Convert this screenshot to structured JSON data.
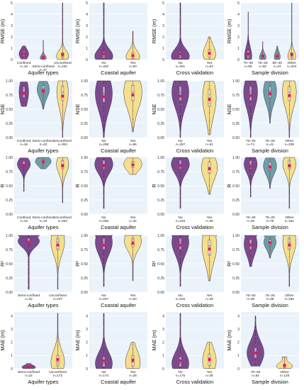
{
  "colors": {
    "panel_bg": "#eaf2fa",
    "grid": "#ffffff",
    "purple": "#7b4a8c",
    "teal": "#6d9ea6",
    "yellow": "#f4e08a",
    "outline": "#3a2a4a",
    "mean": "#e0185a",
    "box": "#ffffff",
    "point": "#e05a8a"
  },
  "chart_data": [
    {
      "type": "violin",
      "ylabel": "RMSE (m)",
      "xlabel": "Aquifer types",
      "ylim": [
        0,
        5
      ],
      "yticks": [
        "0",
        "1",
        "2",
        "3",
        "4",
        "5"
      ],
      "categories": [
        {
          "label": "Confined",
          "n": "n=16",
          "color": "purple",
          "median": 0.5,
          "q1": 0.3,
          "q3": 0.7,
          "min": 0.05,
          "max": 1.2,
          "mean": 0.5,
          "spread": 0.55
        },
        {
          "label": "Semi-confined",
          "n": "n=47",
          "color": "teal",
          "median": 0.15,
          "q1": 0.08,
          "q3": 0.3,
          "min": 0.02,
          "max": 1.7,
          "mean": 0.2,
          "spread": 0.35
        },
        {
          "label": "Unconfined",
          "n": "n=432",
          "color": "yellow",
          "median": 0.3,
          "q1": 0.15,
          "q3": 0.6,
          "min": 0.01,
          "max": 5,
          "mean": 0.45,
          "spread": 0.7
        }
      ]
    },
    {
      "type": "violin",
      "ylabel": "RMSE (m)",
      "xlabel": "Coastal aquifer",
      "ylim": [
        0,
        5
      ],
      "yticks": [
        "0",
        "1",
        "2",
        "3",
        "4",
        "5"
      ],
      "categories": [
        {
          "label": "No",
          "n": "n=402",
          "color": "purple",
          "median": 0.3,
          "q1": 0.12,
          "q3": 0.7,
          "min": 0.01,
          "max": 5,
          "mean": 0.5,
          "spread": 0.8
        },
        {
          "label": "Yes",
          "n": "n=93",
          "color": "yellow",
          "median": 0.25,
          "q1": 0.1,
          "q3": 0.6,
          "min": 0.01,
          "max": 2.5,
          "mean": 0.35,
          "spread": 0.6
        }
      ]
    },
    {
      "type": "violin",
      "ylabel": "RMSE (m)",
      "xlabel": "Cross validation",
      "ylim": [
        0,
        5
      ],
      "yticks": [
        "0",
        "1",
        "2",
        "3",
        "4",
        "5"
      ],
      "categories": [
        {
          "label": "No",
          "n": "n=401",
          "color": "purple",
          "median": 0.3,
          "q1": 0.12,
          "q3": 0.7,
          "min": 0.01,
          "max": 5,
          "mean": 0.5,
          "spread": 0.8
        },
        {
          "label": "Yes",
          "n": "n=63",
          "color": "yellow",
          "median": 0.5,
          "q1": 0.2,
          "q3": 0.9,
          "min": 0.01,
          "max": 2.0,
          "mean": 0.55,
          "spread": 0.55
        }
      ]
    },
    {
      "type": "violin",
      "ylabel": "RMSE (m)",
      "xlabel": "Sample division",
      "ylim": [
        0,
        5
      ],
      "yticks": [
        "0",
        "1",
        "2",
        "3",
        "4",
        "5"
      ],
      "categories": [
        {
          "label": "70–30",
          "n": "n=56",
          "color": "purple",
          "median": 0.3,
          "q1": 0.1,
          "q3": 0.8,
          "min": 0.01,
          "max": 4.2,
          "mean": 0.5,
          "spread": 0.55
        },
        {
          "label": "75–25",
          "n": "n=92",
          "color": "teal",
          "median": 0.2,
          "q1": 0.08,
          "q3": 0.4,
          "min": 0.01,
          "max": 1.6,
          "mean": 0.3,
          "spread": 0.5
        },
        {
          "label": "80–20",
          "n": "n=23",
          "color": "teal",
          "median": 0.25,
          "q1": 0.1,
          "q3": 0.5,
          "min": 0.01,
          "max": 1.2,
          "mean": 0.3,
          "spread": 0.45
        },
        {
          "label": "Other",
          "n": "n=324",
          "color": "yellow",
          "median": 0.3,
          "q1": 0.15,
          "q3": 0.6,
          "min": 0.01,
          "max": 5,
          "mean": 0.45,
          "spread": 0.6
        }
      ]
    },
    {
      "type": "violin",
      "ylabel": "NSE",
      "xlabel": "Aquifer types",
      "ylim": [
        0,
        1
      ],
      "yticks": [
        "0.00",
        "0.25",
        "0.50",
        "0.75",
        "1.00"
      ],
      "categories": [
        {
          "label": "Confined",
          "n": "n=18",
          "color": "purple",
          "median": 0.8,
          "q1": 0.7,
          "q3": 0.9,
          "min": 0.55,
          "max": 0.98,
          "mean": 0.78,
          "spread": 0.55
        },
        {
          "label": "Semi-confined",
          "n": "n=42",
          "color": "teal",
          "median": 0.85,
          "q1": 0.78,
          "q3": 0.92,
          "min": 0.5,
          "max": 0.99,
          "mean": 0.82,
          "spread": 0.7
        },
        {
          "label": "Unconfined",
          "n": "n=304",
          "color": "yellow",
          "median": 0.8,
          "q1": 0.65,
          "q3": 0.9,
          "min": 0.0,
          "max": 1.0,
          "mean": 0.73,
          "spread": 0.65
        }
      ]
    },
    {
      "type": "violin",
      "ylabel": "NSE",
      "xlabel": "Coastal aquifer",
      "ylim": [
        0,
        1
      ],
      "yticks": [
        "0.00",
        "0.25",
        "0.50",
        "0.75",
        "1.00"
      ],
      "categories": [
        {
          "label": "No",
          "n": "n=298",
          "color": "purple",
          "median": 0.78,
          "q1": 0.62,
          "q3": 0.9,
          "min": 0.0,
          "max": 1.0,
          "mean": 0.72,
          "spread": 0.75
        },
        {
          "label": "Yes",
          "n": "n=66",
          "color": "yellow",
          "median": 0.8,
          "q1": 0.65,
          "q3": 0.92,
          "min": 0.1,
          "max": 1.0,
          "mean": 0.75,
          "spread": 0.8
        }
      ]
    },
    {
      "type": "violin",
      "ylabel": "NSE",
      "xlabel": "Cross validation",
      "ylim": [
        0,
        1
      ],
      "yticks": [
        "0.00",
        "0.25",
        "0.50",
        "0.75",
        "1.00"
      ],
      "categories": [
        {
          "label": "No",
          "n": "n=287",
          "color": "purple",
          "median": 0.8,
          "q1": 0.65,
          "q3": 0.9,
          "min": 0.0,
          "max": 1.0,
          "mean": 0.73,
          "spread": 0.75
        },
        {
          "label": "Yes",
          "n": "n=51",
          "color": "yellow",
          "median": 0.7,
          "q1": 0.55,
          "q3": 0.85,
          "min": 0.05,
          "max": 0.99,
          "mean": 0.67,
          "spread": 0.6
        }
      ]
    },
    {
      "type": "violin",
      "ylabel": "NSE",
      "xlabel": "Sample division",
      "ylim": [
        0,
        1
      ],
      "yticks": [
        "0.00",
        "0.25",
        "0.50",
        "0.75",
        "1.00"
      ],
      "categories": [
        {
          "label": "70–30",
          "n": "n=74",
          "color": "purple",
          "median": 0.8,
          "q1": 0.65,
          "q3": 0.9,
          "min": 0.0,
          "max": 1.0,
          "mean": 0.74,
          "spread": 0.8
        },
        {
          "label": "75–25",
          "n": "n=41",
          "color": "teal",
          "median": 0.82,
          "q1": 0.7,
          "q3": 0.9,
          "min": 0.25,
          "max": 0.99,
          "mean": 0.77,
          "spread": 0.75
        },
        {
          "label": "Other",
          "n": "n=238",
          "color": "yellow",
          "median": 0.8,
          "q1": 0.65,
          "q3": 0.9,
          "min": 0.0,
          "max": 1.0,
          "mean": 0.74,
          "spread": 0.8
        }
      ]
    },
    {
      "type": "violin",
      "ylabel": "R",
      "xlabel": "Aquifer types",
      "ylim": [
        0,
        1
      ],
      "yticks": [
        "0.00",
        "0.25",
        "0.50",
        "0.75",
        "1.00"
      ],
      "categories": [
        {
          "label": "Confined",
          "n": "n=16",
          "color": "purple",
          "median": 0.88,
          "q1": 0.83,
          "q3": 0.93,
          "min": 0.4,
          "max": 0.99,
          "mean": 0.86,
          "spread": 0.75
        },
        {
          "label": "Semi-confined",
          "n": "n=19",
          "color": "teal",
          "median": 0.93,
          "q1": 0.88,
          "q3": 0.96,
          "min": 0.8,
          "max": 1.0,
          "mean": 0.92,
          "spread": 0.9
        },
        {
          "label": "Unconfined",
          "n": "n=253",
          "color": "yellow",
          "median": 0.88,
          "q1": 0.8,
          "q3": 0.95,
          "min": 0.2,
          "max": 1.0,
          "mean": 0.85,
          "spread": 0.7
        }
      ]
    },
    {
      "type": "violin",
      "ylabel": "R",
      "xlabel": "Coastal aquifer",
      "ylim": [
        0,
        1
      ],
      "yticks": [
        "0.00",
        "0.25",
        "0.50",
        "0.75",
        "1.00"
      ],
      "categories": [
        {
          "label": "No",
          "n": "n=256",
          "color": "purple",
          "median": 0.88,
          "q1": 0.8,
          "q3": 0.95,
          "min": 0.1,
          "max": 1.0,
          "mean": 0.85,
          "spread": 0.8
        },
        {
          "label": "Yes",
          "n": "n=32",
          "color": "yellow",
          "median": 0.88,
          "q1": 0.82,
          "q3": 0.93,
          "min": 0.7,
          "max": 0.99,
          "mean": 0.87,
          "spread": 0.8
        }
      ]
    },
    {
      "type": "violin",
      "ylabel": "R",
      "xlabel": "Cross validation",
      "ylim": [
        0,
        1
      ],
      "yticks": [
        "0.00",
        "0.25",
        "0.50",
        "0.75",
        "1.00"
      ],
      "categories": [
        {
          "label": "No",
          "n": "n=249",
          "color": "purple",
          "median": 0.88,
          "q1": 0.8,
          "q3": 0.95,
          "min": 0.1,
          "max": 1.0,
          "mean": 0.85,
          "spread": 0.8
        },
        {
          "label": "Yes",
          "n": "n=30",
          "color": "yellow",
          "median": 0.82,
          "q1": 0.72,
          "q3": 0.92,
          "min": 0.35,
          "max": 0.99,
          "mean": 0.8,
          "spread": 0.7
        }
      ]
    },
    {
      "type": "violin",
      "ylabel": "R",
      "xlabel": "Sample division",
      "ylim": [
        0,
        1
      ],
      "yticks": [
        "0.00",
        "0.25",
        "0.50",
        "0.75",
        "1.00"
      ],
      "categories": [
        {
          "label": "70–30",
          "n": "n=48",
          "color": "purple",
          "median": 0.88,
          "q1": 0.8,
          "q3": 0.94,
          "min": 0.3,
          "max": 1.0,
          "mean": 0.84,
          "spread": 0.75
        },
        {
          "label": "75–25",
          "n": "n=76",
          "color": "teal",
          "median": 0.85,
          "q1": 0.78,
          "q3": 0.92,
          "min": 0.45,
          "max": 0.99,
          "mean": 0.83,
          "spread": 0.75
        },
        {
          "label": "Other",
          "n": "n=151",
          "color": "yellow",
          "median": 0.88,
          "q1": 0.8,
          "q3": 0.95,
          "min": 0.1,
          "max": 1.0,
          "mean": 0.85,
          "spread": 0.75
        }
      ]
    },
    {
      "type": "violin",
      "ylabel": "R²",
      "xlabel": "Aquifer types",
      "ylim": [
        0,
        1
      ],
      "yticks": [
        "0.00",
        "0.25",
        "0.50",
        "0.75",
        "1.00"
      ],
      "categories": [
        {
          "label": "Semi-confined",
          "n": "n=32",
          "color": "purple",
          "median": 0.9,
          "q1": 0.85,
          "q3": 0.95,
          "min": 0.05,
          "max": 1.0,
          "mean": 0.88,
          "spread": 0.95,
          "top": true
        },
        {
          "label": "Unconfined",
          "n": "n=237",
          "color": "yellow",
          "median": 0.88,
          "q1": 0.75,
          "q3": 0.95,
          "min": 0.05,
          "max": 1.0,
          "mean": 0.83,
          "spread": 0.6,
          "top": true
        }
      ]
    },
    {
      "type": "violin",
      "ylabel": "R²",
      "xlabel": "Coastal aquifer",
      "ylim": [
        0,
        1
      ],
      "yticks": [
        "0.00",
        "0.25",
        "0.50",
        "0.75",
        "1.00"
      ],
      "categories": [
        {
          "label": "No",
          "n": "n=207",
          "color": "purple",
          "median": 0.88,
          "q1": 0.75,
          "q3": 0.95,
          "min": 0.1,
          "max": 1.0,
          "mean": 0.83,
          "spread": 0.75,
          "top": true
        },
        {
          "label": "Yes",
          "n": "n=63",
          "color": "yellow",
          "median": 0.9,
          "q1": 0.8,
          "q3": 0.95,
          "min": 0.2,
          "max": 1.0,
          "mean": 0.86,
          "spread": 0.75,
          "top": true
        }
      ]
    },
    {
      "type": "violin",
      "ylabel": "R²",
      "xlabel": "Cross validation",
      "ylim": [
        0,
        1
      ],
      "yticks": [
        "0.00",
        "0.25",
        "0.50",
        "0.75",
        "1.00"
      ],
      "categories": [
        {
          "label": "No",
          "n": "n=226",
          "color": "purple",
          "median": 0.88,
          "q1": 0.75,
          "q3": 0.95,
          "min": 0.1,
          "max": 1.0,
          "mean": 0.83,
          "spread": 0.75,
          "top": true
        },
        {
          "label": "Yes",
          "n": "n=39",
          "color": "yellow",
          "median": 0.82,
          "q1": 0.65,
          "q3": 0.92,
          "min": 0.2,
          "max": 1.0,
          "mean": 0.76,
          "spread": 0.65,
          "top": true
        }
      ]
    },
    {
      "type": "violin",
      "ylabel": "R²",
      "xlabel": "Sample division",
      "ylim": [
        0,
        1
      ],
      "yticks": [
        "0.00",
        "0.25",
        "0.50",
        "0.75",
        "1.00"
      ],
      "categories": [
        {
          "label": "70–30",
          "n": "n=38",
          "color": "purple",
          "median": 0.85,
          "q1": 0.75,
          "q3": 0.93,
          "min": 0.45,
          "max": 1.0,
          "mean": 0.83,
          "spread": 0.75,
          "top": true
        },
        {
          "label": "75–25",
          "n": "n=28",
          "color": "teal",
          "median": 0.88,
          "q1": 0.82,
          "q3": 0.93,
          "min": 0.6,
          "max": 0.99,
          "mean": 0.87,
          "spread": 0.7,
          "top": true
        },
        {
          "label": "Other",
          "n": "n=196",
          "color": "yellow",
          "median": 0.88,
          "q1": 0.75,
          "q3": 0.95,
          "min": 0.1,
          "max": 1.0,
          "mean": 0.83,
          "spread": 0.75,
          "top": true
        }
      ]
    },
    {
      "type": "violin",
      "ylabel": "MAE (m)",
      "xlabel": "Aquifer types",
      "ylim": [
        0,
        4.3
      ],
      "yticks": [
        "0",
        "1",
        "2",
        "3",
        "4"
      ],
      "categories": [
        {
          "label": "Semi-confined",
          "n": "n=22",
          "color": "purple",
          "median": 0.12,
          "q1": 0.06,
          "q3": 0.2,
          "min": 0.01,
          "max": 0.4,
          "mean": 0.15,
          "spread": 0.6,
          "flat": true
        },
        {
          "label": "Unconfined",
          "n": "n=172",
          "color": "yellow",
          "median": 0.5,
          "q1": 0.2,
          "q3": 1.0,
          "min": 0.01,
          "max": 4.2,
          "mean": 0.7,
          "spread": 0.6
        }
      ]
    },
    {
      "type": "violin",
      "ylabel": "MAE (m)",
      "xlabel": "Coastal aquifer",
      "ylim": [
        0,
        4.3
      ],
      "yticks": [
        "0",
        "1",
        "2",
        "3",
        "4"
      ],
      "categories": [
        {
          "label": "No",
          "n": "n=174",
          "color": "purple",
          "median": 0.4,
          "q1": 0.15,
          "q3": 0.9,
          "min": 0.01,
          "max": 4.2,
          "mean": 0.6,
          "spread": 0.75
        },
        {
          "label": "Yes",
          "n": "n=28",
          "color": "yellow",
          "median": 0.5,
          "q1": 0.2,
          "q3": 1.0,
          "min": 0.01,
          "max": 2.0,
          "mean": 0.65,
          "spread": 0.65
        }
      ]
    },
    {
      "type": "violin",
      "ylabel": "MAE (m)",
      "xlabel": "Cross validation",
      "ylim": [
        0,
        4.3
      ],
      "yticks": [
        "0",
        "1",
        "2",
        "3",
        "4"
      ],
      "categories": [
        {
          "label": "No",
          "n": "n=175",
          "color": "purple",
          "median": 0.4,
          "q1": 0.15,
          "q3": 0.9,
          "min": 0.01,
          "max": 4.2,
          "mean": 0.6,
          "spread": 0.75
        },
        {
          "label": "Yes",
          "n": "n=25",
          "color": "yellow",
          "median": 0.6,
          "q1": 0.25,
          "q3": 1.1,
          "min": 0.01,
          "max": 2.0,
          "mean": 0.7,
          "spread": 0.6
        }
      ]
    },
    {
      "type": "violin",
      "ylabel": "MAE (m)",
      "xlabel": "Sample division",
      "ylim": [
        0,
        4.3
      ],
      "yticks": [
        "0",
        "1",
        "2",
        "3",
        "4"
      ],
      "categories": [
        {
          "label": "70–30",
          "n": "n=54",
          "color": "purple",
          "median": 1.2,
          "q1": 0.8,
          "q3": 1.6,
          "min": 0.2,
          "max": 4.0,
          "mean": 1.2,
          "spread": 0.75
        },
        {
          "label": "Other",
          "n": "n=128",
          "color": "yellow",
          "median": 0.2,
          "q1": 0.1,
          "q3": 0.35,
          "min": 0.01,
          "max": 0.9,
          "mean": 0.25,
          "spread": 0.7,
          "flat": true
        }
      ]
    }
  ]
}
